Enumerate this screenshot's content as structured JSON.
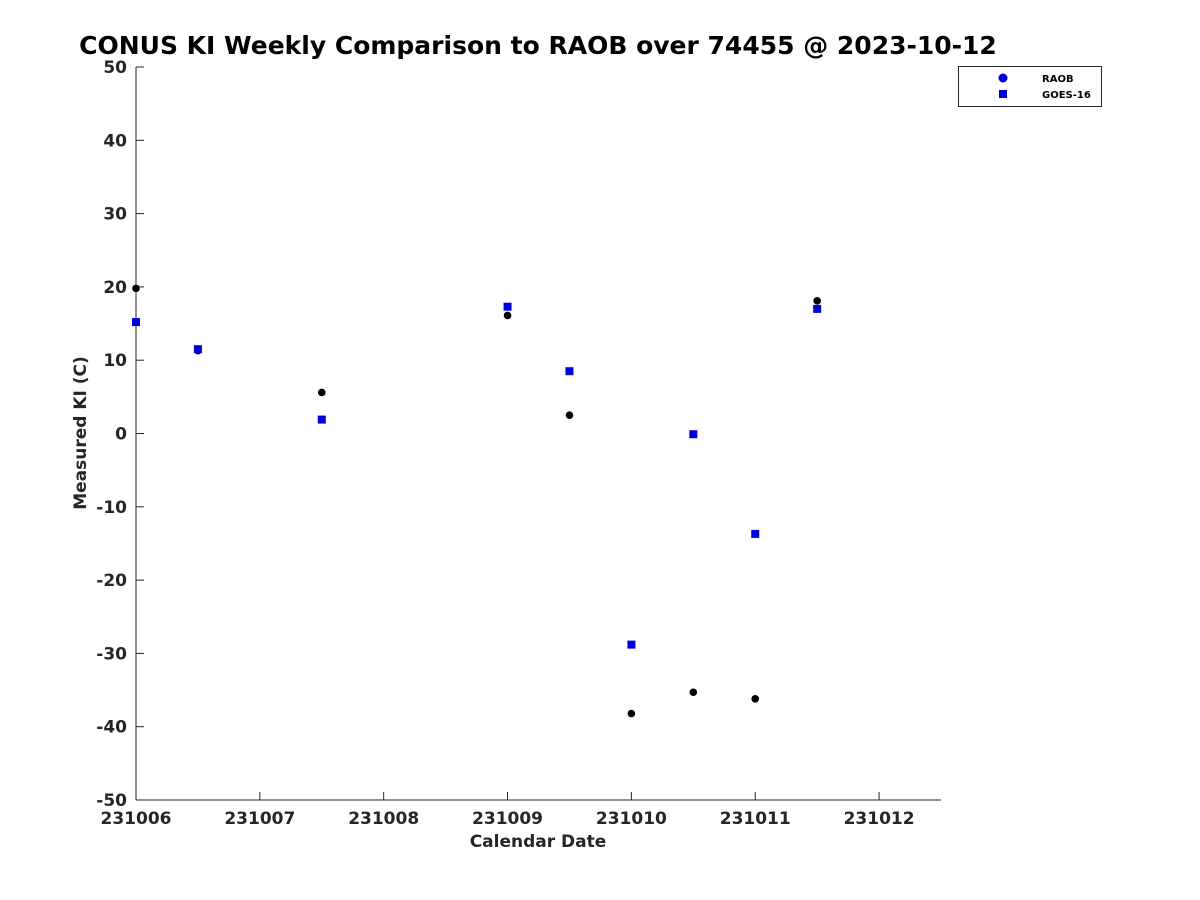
{
  "chart_data": {
    "type": "scatter",
    "title": "CONUS KI Weekly Comparison to RAOB over 74455 @ 2023-10-12",
    "xlabel": "Calendar Date",
    "ylabel": "Measured KI (C)",
    "xlim": [
      231006,
      231012.5
    ],
    "ylim": [
      -50,
      50
    ],
    "x_ticks": [
      231006,
      231007,
      231008,
      231009,
      231010,
      231011,
      231012
    ],
    "x_tick_labels": [
      "231006",
      "231007",
      "231008",
      "231009",
      "231010",
      "231011",
      "231012"
    ],
    "y_ticks": [
      -50,
      -40,
      -30,
      -20,
      -10,
      0,
      10,
      20,
      30,
      40,
      50
    ],
    "y_tick_labels": [
      "-50",
      "-40",
      "-30",
      "-20",
      "-10",
      "0",
      "10",
      "20",
      "30",
      "40",
      "50"
    ],
    "grid": false,
    "legend_position": "top-right",
    "series": [
      {
        "name": "RAOB",
        "marker": "circle",
        "legend_color": "#0000dd",
        "color": "#000000",
        "points": [
          {
            "x": 231006.0,
            "y": 19.8
          },
          {
            "x": 231006.5,
            "y": 11.3
          },
          {
            "x": 231007.5,
            "y": 5.6
          },
          {
            "x": 231009.0,
            "y": 16.1
          },
          {
            "x": 231009.5,
            "y": 2.5
          },
          {
            "x": 231010.0,
            "y": -38.2
          },
          {
            "x": 231010.5,
            "y": -35.3
          },
          {
            "x": 231011.0,
            "y": -36.2
          },
          {
            "x": 231011.5,
            "y": 18.1
          }
        ]
      },
      {
        "name": "GOES-16",
        "marker": "square",
        "legend_color": "#0000dd",
        "color": "#0000dd",
        "points": [
          {
            "x": 231006.0,
            "y": 15.2
          },
          {
            "x": 231006.5,
            "y": 11.5
          },
          {
            "x": 231007.5,
            "y": 1.9
          },
          {
            "x": 231009.0,
            "y": 17.3
          },
          {
            "x": 231009.5,
            "y": 8.5
          },
          {
            "x": 231010.0,
            "y": -28.8
          },
          {
            "x": 231010.5,
            "y": -0.1
          },
          {
            "x": 231011.0,
            "y": -13.7
          },
          {
            "x": 231011.5,
            "y": 17.0
          }
        ]
      }
    ]
  }
}
